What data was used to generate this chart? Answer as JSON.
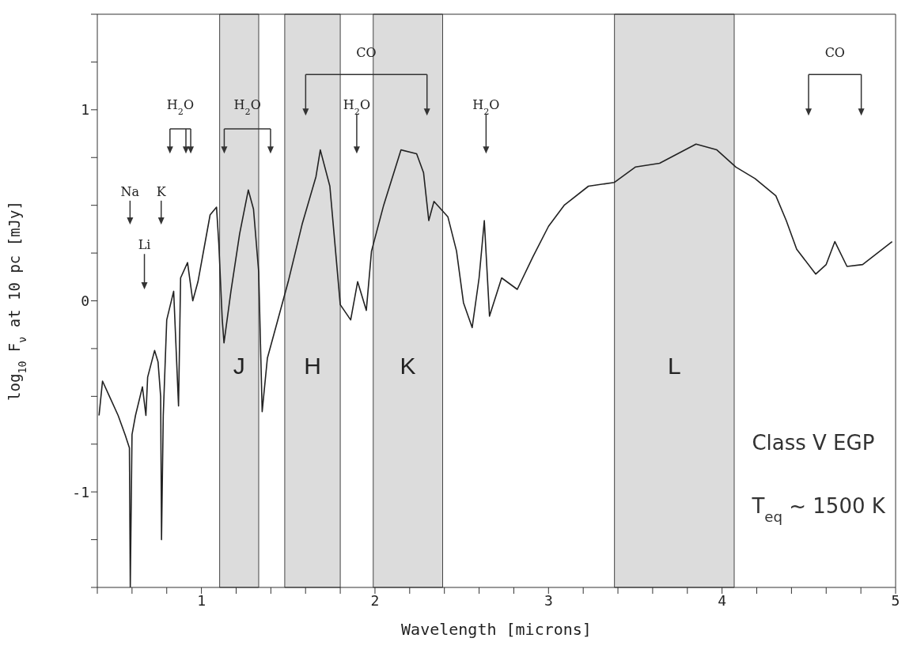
{
  "chart_data": {
    "type": "line",
    "xlabel": "Wavelength  [microns]",
    "ylabel": "log$_{10}$ F$_{ν}$ at 10 pc [mJy]",
    "xlim": [
      0.4,
      5
    ],
    "ylim": [
      -1.5,
      1.5
    ],
    "xticks": [
      {
        "value": 0.4,
        "label": null
      },
      {
        "value": 0.6,
        "label": null
      },
      {
        "value": 0.8,
        "label": null
      },
      1,
      {
        "value": 1.2,
        "label": null
      },
      {
        "value": 1.4,
        "label": null
      },
      {
        "value": 1.6,
        "label": null
      },
      {
        "value": 1.8,
        "label": null
      },
      2,
      {
        "value": 2.2,
        "label": null
      },
      {
        "value": 2.4,
        "label": null
      },
      {
        "value": 2.6,
        "label": null
      },
      {
        "value": 2.8,
        "label": null
      },
      3,
      {
        "value": 3.2,
        "label": null
      },
      {
        "value": 3.4,
        "label": null
      },
      {
        "value": 3.6,
        "label": null
      },
      {
        "value": 3.8,
        "label": null
      },
      4,
      {
        "value": 4.2,
        "label": null
      },
      {
        "value": 4.4,
        "label": null
      },
      {
        "value": 4.6,
        "label": null
      },
      {
        "value": 4.8,
        "label": null
      },
      5
    ],
    "yticks": [
      {
        "value": -1.5,
        "label": null
      },
      {
        "value": -1.25,
        "label": null
      },
      -1,
      {
        "value": -0.75,
        "label": null
      },
      {
        "value": -0.5,
        "label": null
      },
      {
        "value": -0.25,
        "label": null
      },
      0,
      {
        "value": 0.25,
        "label": null
      },
      {
        "value": 0.5,
        "label": null
      },
      {
        "value": 0.75,
        "label": null
      },
      1,
      {
        "value": 1.25,
        "label": null
      },
      {
        "value": 1.5,
        "label": null
      }
    ],
    "marker": "none",
    "line_style": "solid",
    "series": [
      {
        "color": "#222222",
        "x": [
          0.41,
          0.43,
          0.47,
          0.52,
          0.56,
          0.585,
          0.59,
          0.6,
          0.62,
          0.66,
          0.68,
          0.69,
          0.73,
          0.75,
          0.765,
          0.77,
          0.78,
          0.8,
          0.84,
          0.868,
          0.88,
          0.92,
          0.95,
          0.98,
          1.02,
          1.05,
          1.087,
          1.1,
          1.12,
          1.13,
          1.17,
          1.22,
          1.27,
          1.3,
          1.33,
          1.35,
          1.38,
          1.44,
          1.5,
          1.58,
          1.66,
          1.685,
          1.74,
          1.8,
          1.86,
          1.9,
          1.95,
          1.98,
          2.05,
          2.15,
          2.24,
          2.28,
          2.31,
          2.34,
          2.42,
          2.47,
          2.51,
          2.56,
          2.6,
          2.63,
          2.66,
          2.73,
          2.82,
          2.91,
          3.0,
          3.09,
          3.23,
          3.38,
          3.5,
          3.64,
          3.85,
          3.97,
          4.08,
          4.19,
          4.31,
          4.37,
          4.43,
          4.54,
          4.6,
          4.65,
          4.72,
          4.81,
          4.98
        ],
        "values": [
          -0.6,
          -0.42,
          -0.5,
          -0.6,
          -0.7,
          -0.77,
          -1.5,
          -0.7,
          -0.6,
          -0.45,
          -0.6,
          -0.4,
          -0.26,
          -0.32,
          -0.5,
          -1.25,
          -0.6,
          -0.1,
          0.05,
          -0.55,
          0.12,
          0.2,
          0.0,
          0.1,
          0.3,
          0.45,
          0.49,
          0.3,
          -0.1,
          -0.22,
          0.05,
          0.35,
          0.58,
          0.48,
          0.15,
          -0.58,
          -0.3,
          -0.1,
          0.1,
          0.4,
          0.65,
          0.79,
          0.6,
          -0.02,
          -0.1,
          0.1,
          -0.05,
          0.26,
          0.5,
          0.79,
          0.77,
          0.67,
          0.42,
          0.52,
          0.44,
          0.26,
          -0.01,
          -0.14,
          0.12,
          0.42,
          -0.08,
          0.12,
          0.06,
          0.23,
          0.39,
          0.5,
          0.6,
          0.62,
          0.7,
          0.72,
          0.82,
          0.79,
          0.7,
          0.64,
          0.55,
          0.42,
          0.27,
          0.14,
          0.19,
          0.31,
          0.18,
          0.19,
          0.31
        ]
      }
    ],
    "bands": [
      {
        "axis": "x",
        "from": 1.105,
        "to": 1.33,
        "label": "J",
        "color": "#dcdcdc"
      },
      {
        "axis": "x",
        "from": 1.48,
        "to": 1.8,
        "label": "H",
        "color": "#dcdcdc"
      },
      {
        "axis": "x",
        "from": 1.99,
        "to": 2.39,
        "label": "K",
        "color": "#dcdcdc"
      },
      {
        "axis": "x",
        "from": 3.38,
        "to": 4.07,
        "label": "L",
        "color": "#dcdcdc"
      }
    ],
    "annotations": [
      "Na",
      "K",
      "Li",
      "H$_{2}$O",
      "H$_{2}$O",
      "H$_{2}$O",
      "H$_{2}$O",
      "CO",
      "CO",
      "Class V EGP",
      "T$_{eq}$ ~ 1500 K"
    ]
  }
}
